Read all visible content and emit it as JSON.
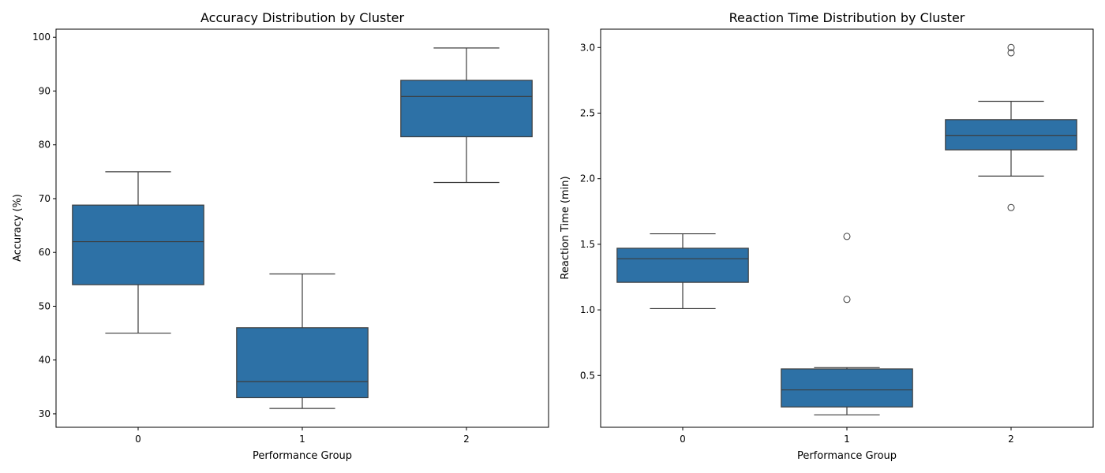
{
  "colors": {
    "box_fill": "#2d71a6",
    "line": "#3d3d3d",
    "axes": "#000000",
    "background": "#ffffff"
  },
  "chart_data": [
    {
      "type": "box",
      "title": "Accuracy Distribution by Cluster",
      "xlabel": "Performance Group",
      "ylabel": "Accuracy (%)",
      "categories": [
        "0",
        "1",
        "2"
      ],
      "ylim": [
        27.5,
        101.5
      ],
      "yticks": [
        30,
        40,
        50,
        60,
        70,
        80,
        90,
        100
      ],
      "ytick_labels": [
        "30",
        "40",
        "50",
        "60",
        "70",
        "80",
        "90",
        "100"
      ],
      "grid": false,
      "boxes": [
        {
          "category": "0",
          "whislo": 45,
          "q1": 54,
          "median": 62,
          "q3": 68.8,
          "whishi": 75,
          "fliers": []
        },
        {
          "category": "1",
          "whislo": 31,
          "q1": 33,
          "median": 36,
          "q3": 46,
          "whishi": 56,
          "fliers": []
        },
        {
          "category": "2",
          "whislo": 73,
          "q1": 81.5,
          "median": 89,
          "q3": 92,
          "whishi": 98,
          "fliers": []
        }
      ]
    },
    {
      "type": "box",
      "title": "Reaction Time Distribution by Cluster",
      "xlabel": "Performance Group",
      "ylabel": "Reaction Time (min)",
      "categories": [
        "0",
        "1",
        "2"
      ],
      "ylim": [
        0.105,
        3.14
      ],
      "yticks": [
        0.5,
        1.0,
        1.5,
        2.0,
        2.5,
        3.0
      ],
      "ytick_labels": [
        "0.5",
        "1.0",
        "1.5",
        "2.0",
        "2.5",
        "3.0"
      ],
      "grid": false,
      "boxes": [
        {
          "category": "0",
          "whislo": 1.01,
          "q1": 1.21,
          "median": 1.39,
          "q3": 1.47,
          "whishi": 1.58,
          "fliers": []
        },
        {
          "category": "1",
          "whislo": 0.2,
          "q1": 0.26,
          "median": 0.39,
          "q3": 0.55,
          "whishi": 0.56,
          "fliers": [
            1.08,
            1.56
          ]
        },
        {
          "category": "2",
          "whislo": 2.02,
          "q1": 2.22,
          "median": 2.33,
          "q3": 2.45,
          "whishi": 2.59,
          "fliers": [
            1.78,
            2.96,
            3.0
          ]
        }
      ]
    }
  ]
}
